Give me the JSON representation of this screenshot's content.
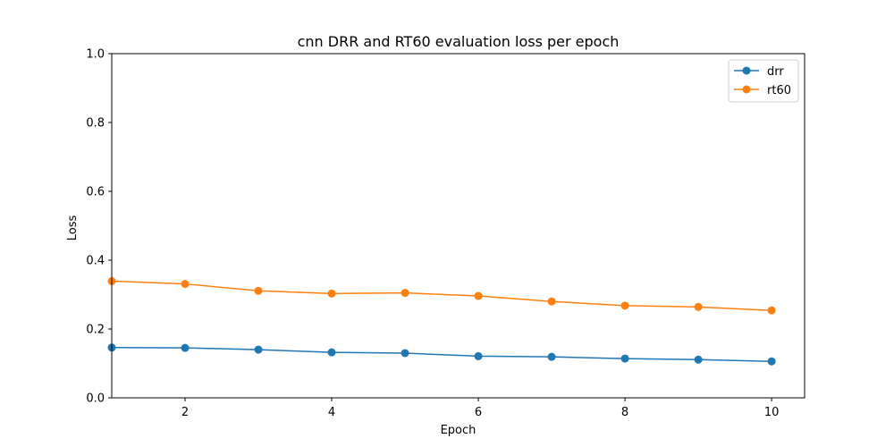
{
  "chart_data": {
    "type": "line",
    "title": "cnn DRR and RT60 evaluation loss per epoch",
    "xlabel": "Epoch",
    "ylabel": "Loss",
    "xlim": [
      1,
      10.45
    ],
    "ylim": [
      0.0,
      1.0
    ],
    "xticks": [
      2,
      4,
      6,
      8,
      10
    ],
    "yticks": [
      0.0,
      0.2,
      0.4,
      0.6,
      0.8,
      1.0
    ],
    "ytick_labels": [
      "0.0",
      "0.2",
      "0.4",
      "0.6",
      "0.8",
      "1.0"
    ],
    "grid": false,
    "legend_position": "top-right",
    "x": [
      1,
      2,
      3,
      4,
      5,
      6,
      7,
      8,
      9,
      10
    ],
    "series": [
      {
        "name": "drr",
        "color": "#1f77b4",
        "values": [
          0.146,
          0.145,
          0.14,
          0.132,
          0.13,
          0.121,
          0.119,
          0.114,
          0.111,
          0.106
        ]
      },
      {
        "name": "rt60",
        "color": "#ff7f0e",
        "values": [
          0.339,
          0.331,
          0.311,
          0.303,
          0.305,
          0.296,
          0.28,
          0.268,
          0.264,
          0.254
        ]
      }
    ]
  }
}
